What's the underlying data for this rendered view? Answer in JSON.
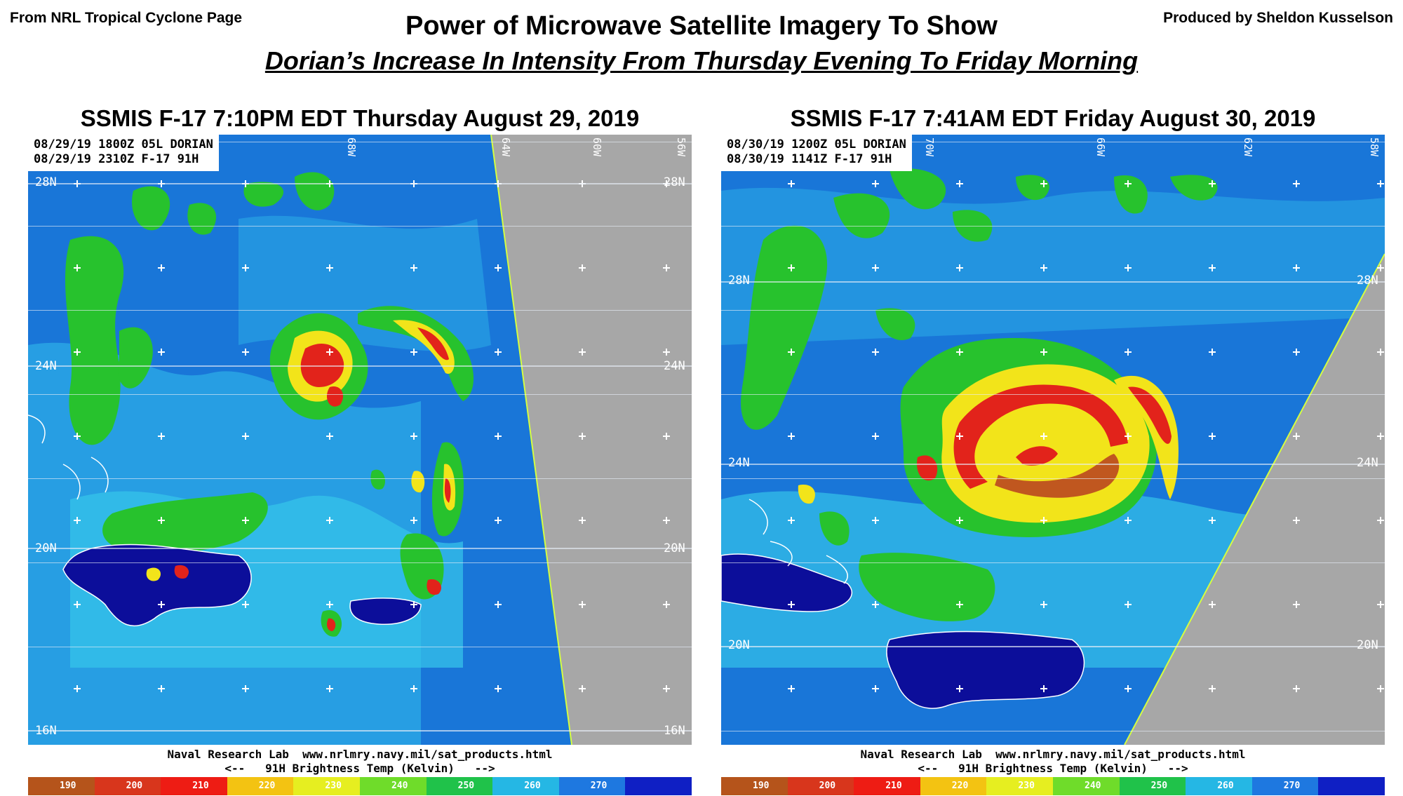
{
  "header": {
    "source": "From NRL Tropical Cyclone Page",
    "author": "Produced by Sheldon Kusselson",
    "title": "Power of Microwave Satellite Imagery To Show",
    "subtitle": "Dorian’s Increase In Intensity From Thursday Evening To Friday Morning"
  },
  "panels": [
    {
      "title": "SSMIS F-17  7:10PM EDT Thursday August 29, 2019",
      "info_line1": "08/29/19 1800Z 05L DORIAN",
      "info_line2": "08/29/19 2310Z F-17 91H",
      "lat_labels": [
        "28N",
        "24N",
        "20N",
        "16N"
      ],
      "lat_labels_right": [
        "28N",
        "24N",
        "20N",
        "16N"
      ],
      "lon_labels": [
        "68W",
        "64W",
        "60W",
        "56W"
      ],
      "footer_line1": "Naval Research Lab  www.nrlmry.navy.mil/sat_products.html",
      "footer_line2": "<--   91H Brightness Temp (Kelvin)   -->"
    },
    {
      "title": "SSMIS F-17  7:41AM EDT Friday August 30, 2019",
      "info_line1": "08/30/19 1200Z 05L DORIAN",
      "info_line2": "08/30/19 1141Z F-17 91H",
      "lat_labels": [
        "28N",
        "24N",
        "20N"
      ],
      "lat_labels_right": [
        "28N",
        "24N",
        "20N"
      ],
      "lon_labels": [
        "70W",
        "66W",
        "62W",
        "58W"
      ],
      "footer_line1": "Naval Research Lab  www.nrlmry.navy.mil/sat_products.html",
      "footer_line2": "<--   91H Brightness Temp (Kelvin)   -->"
    }
  ],
  "colorbar": {
    "ticks": [
      "190",
      "200",
      "210",
      "220",
      "230",
      "240",
      "250",
      "260",
      "270"
    ],
    "colors": [
      "#b5541b",
      "#d8361c",
      "#ee1c14",
      "#f3c312",
      "#e6ee20",
      "#6fdc2a",
      "#20c24a",
      "#25b7e4",
      "#1e78e0",
      "#0f1fc4"
    ]
  },
  "map_colors": {
    "ocean": "#1976d8",
    "cool_cloud": "#2fbfe3",
    "green_cloud": "#27c22d",
    "yellow": "#f2e41a",
    "red": "#e2231b",
    "land": "#0c0e9a",
    "no_data": "#a7a7a7"
  }
}
